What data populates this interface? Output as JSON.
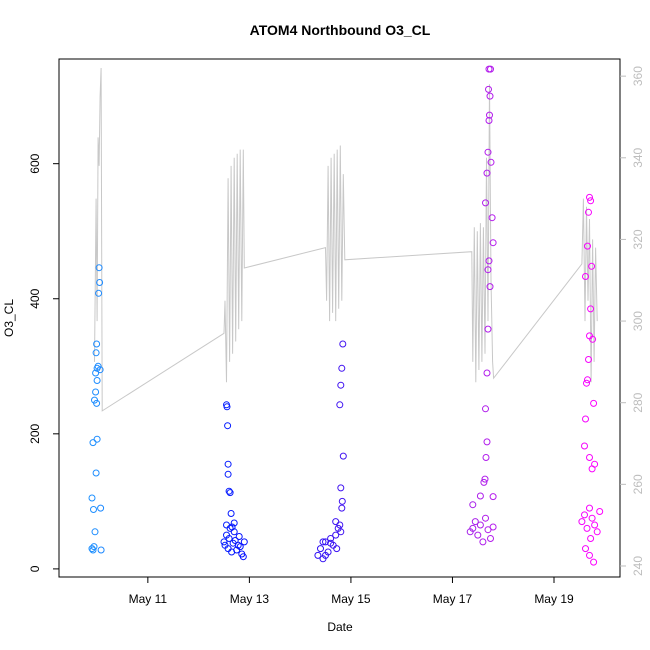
{
  "chart_data": {
    "type": "scatter",
    "title": "ATOM4 Northbound O3_CL",
    "xlabel": "Date",
    "ylabel": "O3_CL",
    "x_ticks": [
      "May 11",
      "May 13",
      "May 15",
      "May 17",
      "May 19"
    ],
    "x_tick_days": [
      11,
      13,
      15,
      17,
      19
    ],
    "xlim_days": [
      9.25,
      20.3
    ],
    "ylim": [
      -12,
      755
    ],
    "y_ticks": [
      0,
      200,
      400,
      600
    ],
    "y2_ticks": [
      240,
      260,
      280,
      300,
      320,
      340,
      360
    ],
    "y2lim": [
      237.3,
      364.2
    ],
    "grid": false,
    "point_color_scale": [
      "#1e90ff",
      "#0000ff",
      "#8a2be2",
      "#ff00ff"
    ],
    "line_color": "#c8c8c8",
    "series": [
      {
        "points": [
          {
            "x": 9.9,
            "y": 30
          },
          {
            "x": 9.92,
            "y": 28
          },
          {
            "x": 9.94,
            "y": 33
          },
          {
            "x": 9.96,
            "y": 55
          },
          {
            "x": 9.9,
            "y": 105
          },
          {
            "x": 9.93,
            "y": 88
          },
          {
            "x": 9.98,
            "y": 142
          },
          {
            "x": 10.0,
            "y": 192
          },
          {
            "x": 9.92,
            "y": 187
          },
          {
            "x": 9.95,
            "y": 250
          },
          {
            "x": 9.97,
            "y": 262
          },
          {
            "x": 9.99,
            "y": 245
          },
          {
            "x": 10.0,
            "y": 279
          },
          {
            "x": 9.97,
            "y": 290
          },
          {
            "x": 10.0,
            "y": 297
          },
          {
            "x": 10.02,
            "y": 300
          },
          {
            "x": 9.98,
            "y": 320
          },
          {
            "x": 9.99,
            "y": 333
          },
          {
            "x": 10.04,
            "y": 446
          },
          {
            "x": 10.05,
            "y": 424
          },
          {
            "x": 10.03,
            "y": 408
          },
          {
            "x": 10.06,
            "y": 295
          },
          {
            "x": 10.07,
            "y": 90
          },
          {
            "x": 10.08,
            "y": 28
          }
        ]
      },
      {
        "points": [
          {
            "x": 12.5,
            "y": 40
          },
          {
            "x": 12.52,
            "y": 35
          },
          {
            "x": 12.55,
            "y": 50
          },
          {
            "x": 12.58,
            "y": 30
          },
          {
            "x": 12.6,
            "y": 45
          },
          {
            "x": 12.62,
            "y": 60
          },
          {
            "x": 12.65,
            "y": 25
          },
          {
            "x": 12.68,
            "y": 38
          },
          {
            "x": 12.7,
            "y": 55
          },
          {
            "x": 12.72,
            "y": 42
          },
          {
            "x": 12.75,
            "y": 28
          },
          {
            "x": 12.78,
            "y": 35
          },
          {
            "x": 12.8,
            "y": 48
          },
          {
            "x": 12.82,
            "y": 33
          },
          {
            "x": 12.85,
            "y": 22
          },
          {
            "x": 12.88,
            "y": 18
          },
          {
            "x": 12.9,
            "y": 40
          },
          {
            "x": 12.55,
            "y": 243
          },
          {
            "x": 12.56,
            "y": 240
          },
          {
            "x": 12.57,
            "y": 212
          },
          {
            "x": 12.58,
            "y": 155
          },
          {
            "x": 12.6,
            "y": 115
          },
          {
            "x": 12.62,
            "y": 113
          },
          {
            "x": 12.58,
            "y": 140
          },
          {
            "x": 12.64,
            "y": 82
          },
          {
            "x": 12.66,
            "y": 62
          },
          {
            "x": 12.7,
            "y": 68
          },
          {
            "x": 12.55,
            "y": 65
          }
        ]
      },
      {
        "points": [
          {
            "x": 14.35,
            "y": 20
          },
          {
            "x": 14.4,
            "y": 30
          },
          {
            "x": 14.45,
            "y": 15
          },
          {
            "x": 14.5,
            "y": 40
          },
          {
            "x": 14.55,
            "y": 25
          },
          {
            "x": 14.6,
            "y": 45
          },
          {
            "x": 14.65,
            "y": 35
          },
          {
            "x": 14.7,
            "y": 50
          },
          {
            "x": 14.75,
            "y": 60
          },
          {
            "x": 14.8,
            "y": 55
          },
          {
            "x": 14.7,
            "y": 70
          },
          {
            "x": 14.78,
            "y": 65
          },
          {
            "x": 14.82,
            "y": 90
          },
          {
            "x": 14.8,
            "y": 120
          },
          {
            "x": 14.83,
            "y": 100
          },
          {
            "x": 14.85,
            "y": 167
          },
          {
            "x": 14.78,
            "y": 243
          },
          {
            "x": 14.8,
            "y": 272
          },
          {
            "x": 14.82,
            "y": 297
          },
          {
            "x": 14.84,
            "y": 333
          },
          {
            "x": 14.45,
            "y": 40
          },
          {
            "x": 14.5,
            "y": 20
          },
          {
            "x": 14.6,
            "y": 38
          },
          {
            "x": 14.72,
            "y": 30
          }
        ]
      },
      {
        "points": [
          {
            "x": 17.35,
            "y": 55
          },
          {
            "x": 17.4,
            "y": 60
          },
          {
            "x": 17.45,
            "y": 70
          },
          {
            "x": 17.5,
            "y": 50
          },
          {
            "x": 17.55,
            "y": 65
          },
          {
            "x": 17.6,
            "y": 40
          },
          {
            "x": 17.65,
            "y": 75
          },
          {
            "x": 17.7,
            "y": 58
          },
          {
            "x": 17.75,
            "y": 45
          },
          {
            "x": 17.8,
            "y": 62
          },
          {
            "x": 17.4,
            "y": 95
          },
          {
            "x": 17.55,
            "y": 108
          },
          {
            "x": 17.62,
            "y": 128
          },
          {
            "x": 17.64,
            "y": 133
          },
          {
            "x": 17.66,
            "y": 165
          },
          {
            "x": 17.68,
            "y": 188
          },
          {
            "x": 17.65,
            "y": 237
          },
          {
            "x": 17.68,
            "y": 290
          },
          {
            "x": 17.7,
            "y": 355
          },
          {
            "x": 17.7,
            "y": 443
          },
          {
            "x": 17.72,
            "y": 456
          },
          {
            "x": 17.74,
            "y": 418
          },
          {
            "x": 17.65,
            "y": 542
          },
          {
            "x": 17.68,
            "y": 586
          },
          {
            "x": 17.7,
            "y": 617
          },
          {
            "x": 17.72,
            "y": 664
          },
          {
            "x": 17.74,
            "y": 700
          },
          {
            "x": 17.75,
            "y": 740
          },
          {
            "x": 17.72,
            "y": 740
          },
          {
            "x": 17.71,
            "y": 710
          },
          {
            "x": 17.73,
            "y": 672
          },
          {
            "x": 17.76,
            "y": 602
          },
          {
            "x": 17.78,
            "y": 520
          },
          {
            "x": 17.8,
            "y": 483
          },
          {
            "x": 17.8,
            "y": 107
          }
        ]
      },
      {
        "points": [
          {
            "x": 19.55,
            "y": 70
          },
          {
            "x": 19.6,
            "y": 80
          },
          {
            "x": 19.65,
            "y": 60
          },
          {
            "x": 19.7,
            "y": 90
          },
          {
            "x": 19.75,
            "y": 75
          },
          {
            "x": 19.8,
            "y": 65
          },
          {
            "x": 19.85,
            "y": 55
          },
          {
            "x": 19.9,
            "y": 85
          },
          {
            "x": 19.62,
            "y": 30
          },
          {
            "x": 19.7,
            "y": 20
          },
          {
            "x": 19.78,
            "y": 10
          },
          {
            "x": 19.72,
            "y": 45
          },
          {
            "x": 19.6,
            "y": 182
          },
          {
            "x": 19.62,
            "y": 222
          },
          {
            "x": 19.64,
            "y": 275
          },
          {
            "x": 19.66,
            "y": 280
          },
          {
            "x": 19.68,
            "y": 310
          },
          {
            "x": 19.7,
            "y": 345
          },
          {
            "x": 19.72,
            "y": 385
          },
          {
            "x": 19.62,
            "y": 433
          },
          {
            "x": 19.66,
            "y": 478
          },
          {
            "x": 19.68,
            "y": 528
          },
          {
            "x": 19.7,
            "y": 550
          },
          {
            "x": 19.72,
            "y": 545
          },
          {
            "x": 19.74,
            "y": 448
          },
          {
            "x": 19.76,
            "y": 340
          },
          {
            "x": 19.78,
            "y": 245
          },
          {
            "x": 19.8,
            "y": 155
          },
          {
            "x": 19.75,
            "y": 148
          },
          {
            "x": 19.7,
            "y": 165
          }
        ]
      }
    ],
    "line_series": {
      "axis": "right",
      "points": [
        {
          "x": 9.95,
          "y": 290
        },
        {
          "x": 9.98,
          "y": 330
        },
        {
          "x": 10.0,
          "y": 300
        },
        {
          "x": 10.02,
          "y": 345
        },
        {
          "x": 10.04,
          "y": 338
        },
        {
          "x": 10.06,
          "y": 355
        },
        {
          "x": 10.08,
          "y": 362
        },
        {
          "x": 10.1,
          "y": 278
        },
        {
          "x": 12.5,
          "y": 297
        },
        {
          "x": 12.52,
          "y": 305
        },
        {
          "x": 12.55,
          "y": 285
        },
        {
          "x": 12.58,
          "y": 335
        },
        {
          "x": 12.61,
          "y": 290
        },
        {
          "x": 12.64,
          "y": 338
        },
        {
          "x": 12.67,
          "y": 292
        },
        {
          "x": 12.7,
          "y": 340
        },
        {
          "x": 12.73,
          "y": 295
        },
        {
          "x": 12.76,
          "y": 341
        },
        {
          "x": 12.79,
          "y": 298
        },
        {
          "x": 12.82,
          "y": 342
        },
        {
          "x": 12.85,
          "y": 300
        },
        {
          "x": 12.88,
          "y": 342
        },
        {
          "x": 12.9,
          "y": 313
        },
        {
          "x": 14.5,
          "y": 318
        },
        {
          "x": 14.52,
          "y": 305
        },
        {
          "x": 14.55,
          "y": 338
        },
        {
          "x": 14.58,
          "y": 300
        },
        {
          "x": 14.61,
          "y": 340
        },
        {
          "x": 14.64,
          "y": 302
        },
        {
          "x": 14.67,
          "y": 341
        },
        {
          "x": 14.7,
          "y": 300
        },
        {
          "x": 14.73,
          "y": 342
        },
        {
          "x": 14.76,
          "y": 303
        },
        {
          "x": 14.79,
          "y": 343
        },
        {
          "x": 14.82,
          "y": 305
        },
        {
          "x": 14.85,
          "y": 336
        },
        {
          "x": 14.88,
          "y": 315
        },
        {
          "x": 17.38,
          "y": 317
        },
        {
          "x": 17.4,
          "y": 290
        },
        {
          "x": 17.43,
          "y": 323
        },
        {
          "x": 17.46,
          "y": 285
        },
        {
          "x": 17.49,
          "y": 322
        },
        {
          "x": 17.52,
          "y": 288
        },
        {
          "x": 17.55,
          "y": 324
        },
        {
          "x": 17.58,
          "y": 290
        },
        {
          "x": 17.61,
          "y": 323
        },
        {
          "x": 17.64,
          "y": 292
        },
        {
          "x": 17.67,
          "y": 340
        },
        {
          "x": 17.7,
          "y": 300
        },
        {
          "x": 17.73,
          "y": 358
        },
        {
          "x": 17.76,
          "y": 310
        },
        {
          "x": 17.79,
          "y": 290
        },
        {
          "x": 17.81,
          "y": 286
        },
        {
          "x": 19.55,
          "y": 314
        },
        {
          "x": 19.58,
          "y": 330
        },
        {
          "x": 19.61,
          "y": 300
        },
        {
          "x": 19.64,
          "y": 328
        },
        {
          "x": 19.67,
          "y": 305
        },
        {
          "x": 19.7,
          "y": 325
        },
        {
          "x": 19.73,
          "y": 285
        },
        {
          "x": 19.76,
          "y": 320
        },
        {
          "x": 19.79,
          "y": 290
        },
        {
          "x": 19.82,
          "y": 318
        },
        {
          "x": 19.85,
          "y": 300
        }
      ]
    }
  }
}
